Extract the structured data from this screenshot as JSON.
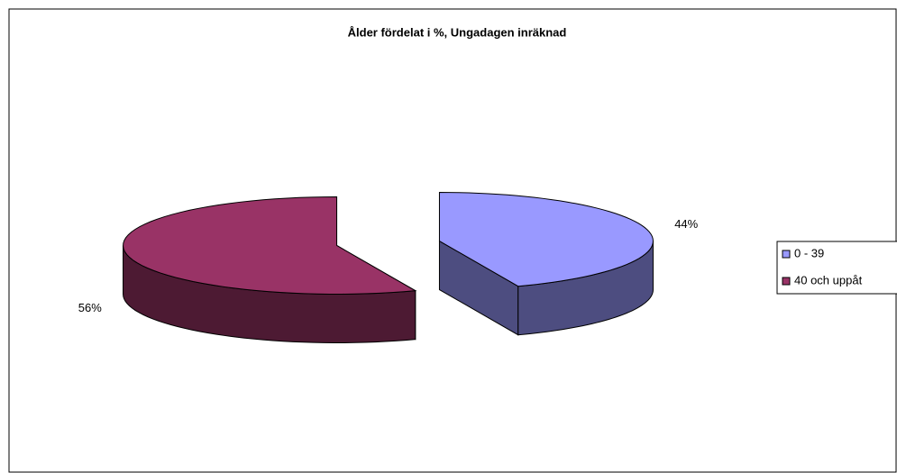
{
  "chart_data": {
    "type": "pie3d",
    "title": "Ålder fördelat i %, Ungadagen inräknad",
    "categories": [
      "0 - 39",
      "40 och uppåt"
    ],
    "values": [
      44,
      56
    ],
    "value_labels": [
      "44%",
      "56%"
    ],
    "colors": [
      "#9999ff",
      "#993366"
    ],
    "legend": "right",
    "exploded": true
  }
}
